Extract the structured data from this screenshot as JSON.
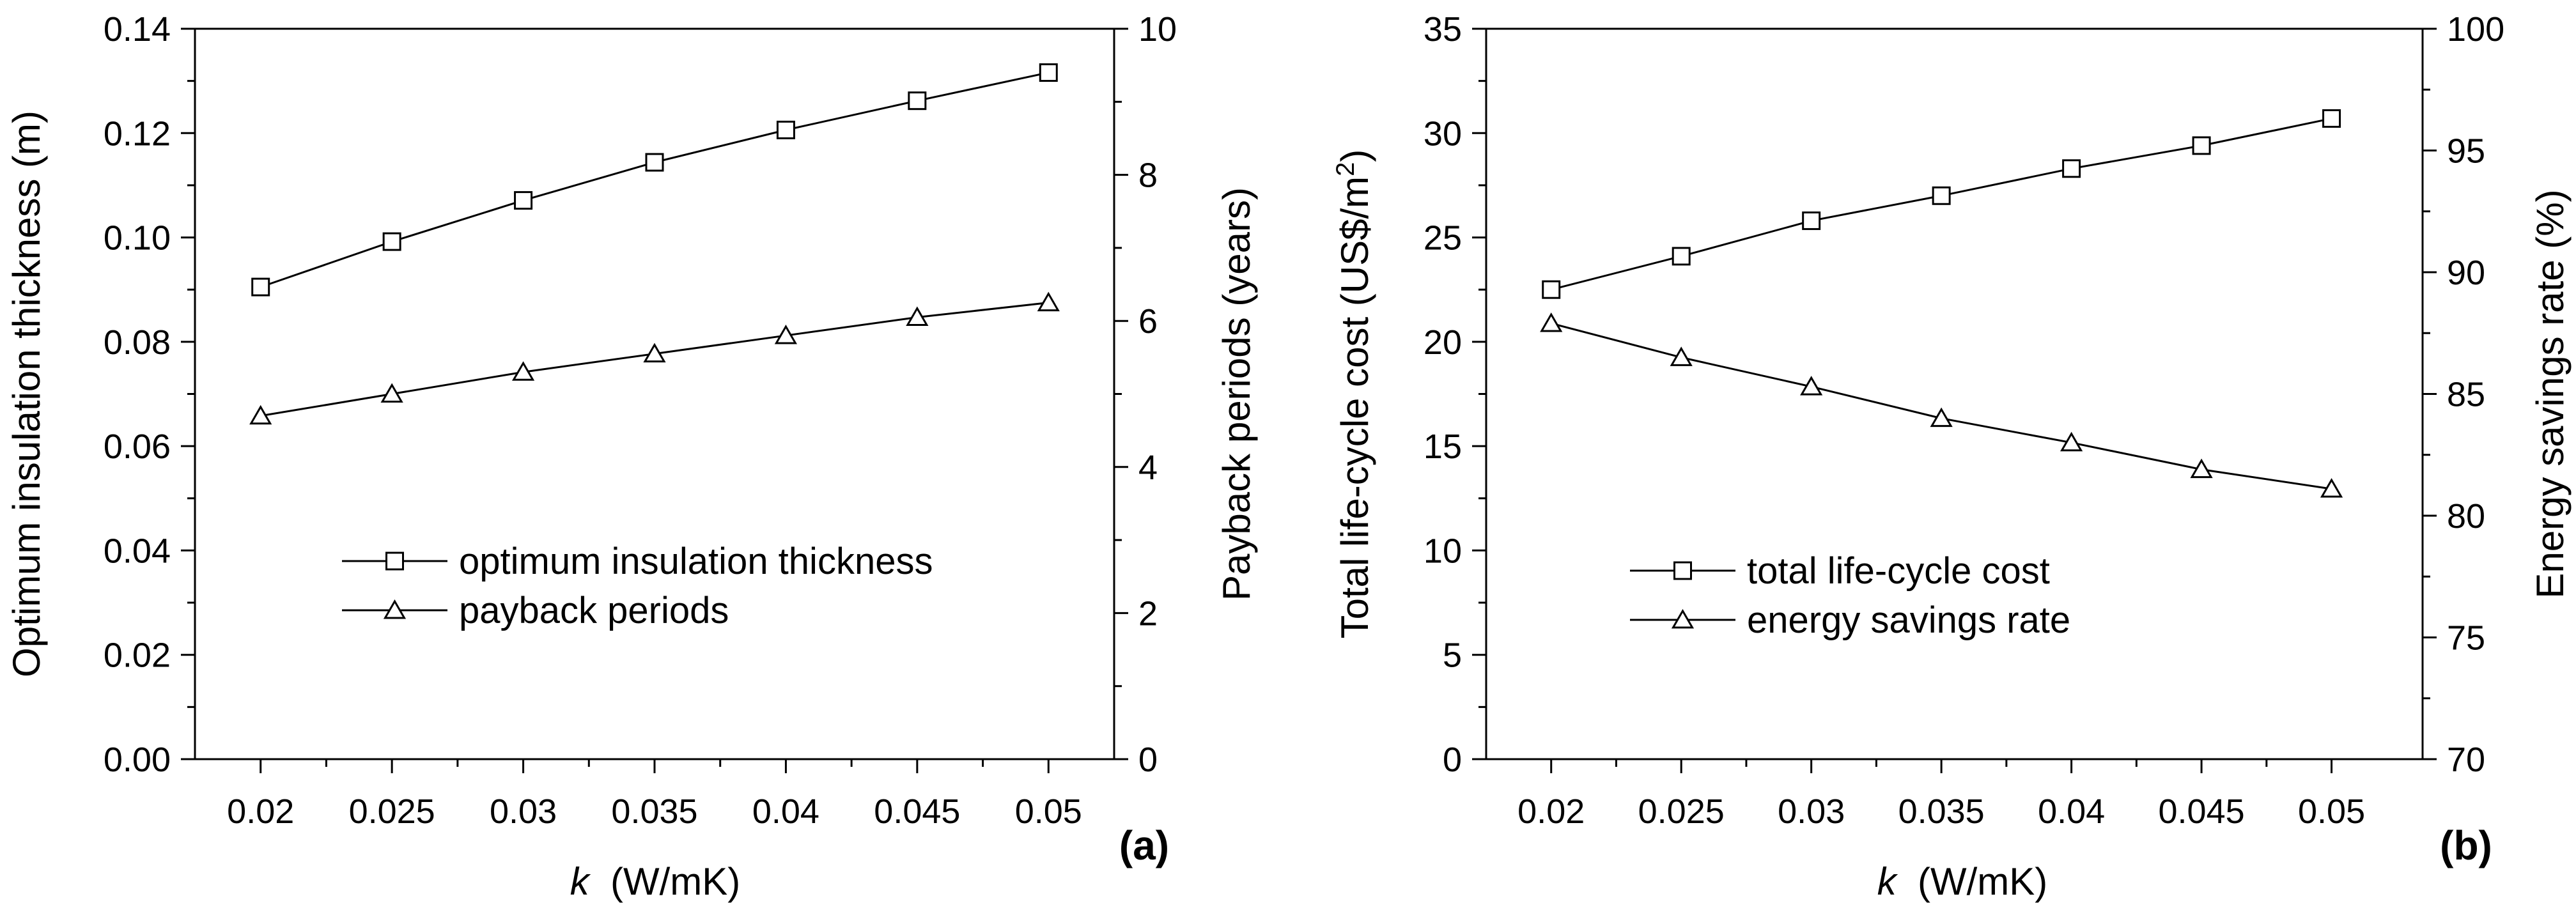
{
  "chart_data": [
    {
      "type": "line",
      "panel_label": "(a)",
      "x": [
        0.02,
        0.025,
        0.03,
        0.035,
        0.04,
        0.045,
        0.05
      ],
      "x_tick_labels": [
        "0.02",
        "0.025",
        "0.03",
        "0.035",
        "0.04",
        "0.045",
        "0.05"
      ],
      "xlabel": {
        "symbol": "k",
        "unit": "(W/mK)"
      },
      "xlim": [
        0.0175,
        0.0525
      ],
      "left_axis": {
        "label": "Optimum insulation thickness (m)",
        "range": [
          0.0,
          0.14
        ],
        "ticks": [
          0.0,
          0.02,
          0.04,
          0.06,
          0.08,
          0.1,
          0.12,
          0.14
        ],
        "tick_labels": [
          "0.00",
          "0.02",
          "0.04",
          "0.06",
          "0.08",
          "0.10",
          "0.12",
          "0.14"
        ]
      },
      "right_axis": {
        "label": "Payback periods (years)",
        "range": [
          0,
          10
        ],
        "ticks": [
          0,
          2,
          4,
          6,
          8,
          10
        ],
        "tick_labels": [
          "0",
          "2",
          "4",
          "6",
          "8",
          "10"
        ]
      },
      "series": [
        {
          "name": "optimum insulation thickness",
          "axis": "left",
          "marker": "square",
          "values": [
            0.0905,
            0.0992,
            0.1071,
            0.1144,
            0.1206,
            0.1262,
            0.1316
          ]
        },
        {
          "name": "payback periods",
          "axis": "right",
          "marker": "triangle",
          "values": [
            4.7,
            5.0,
            5.3,
            5.55,
            5.8,
            6.05,
            6.25
          ]
        }
      ],
      "legend_position": "lower-middle",
      "grid": false
    },
    {
      "type": "line",
      "panel_label": "(b)",
      "x": [
        0.02,
        0.025,
        0.03,
        0.035,
        0.04,
        0.045,
        0.05
      ],
      "x_tick_labels": [
        "0.02",
        "0.025",
        "0.03",
        "0.035",
        "0.04",
        "0.045",
        "0.05"
      ],
      "xlabel": {
        "symbol": "k",
        "unit": "(W/mK)"
      },
      "xlim": [
        0.0175,
        0.0535
      ],
      "left_axis": {
        "label": "Total life-cycle cost (US$/m",
        "label_superscript": "2",
        "label_suffix": ")",
        "range": [
          0,
          35
        ],
        "ticks": [
          0,
          5,
          10,
          15,
          20,
          25,
          30,
          35
        ],
        "tick_labels": [
          "0",
          "5",
          "10",
          "15",
          "20",
          "25",
          "30",
          "35"
        ]
      },
      "right_axis": {
        "label": "Energy savings rate (%)",
        "range": [
          70,
          100
        ],
        "ticks": [
          70,
          75,
          80,
          85,
          90,
          95,
          100
        ],
        "tick_labels": [
          "70",
          "75",
          "80",
          "85",
          "90",
          "95",
          "100"
        ]
      },
      "series": [
        {
          "name": "total life-cycle cost",
          "axis": "left",
          "marker": "square",
          "values": [
            22.5,
            24.1,
            25.8,
            27.0,
            28.3,
            29.4,
            30.7
          ]
        },
        {
          "name": "energy savings rate",
          "axis": "right",
          "marker": "triangle",
          "values": [
            87.9,
            86.5,
            85.3,
            84.0,
            83.0,
            81.9,
            81.1
          ]
        }
      ],
      "legend_position": "lower-middle",
      "grid": false
    }
  ]
}
